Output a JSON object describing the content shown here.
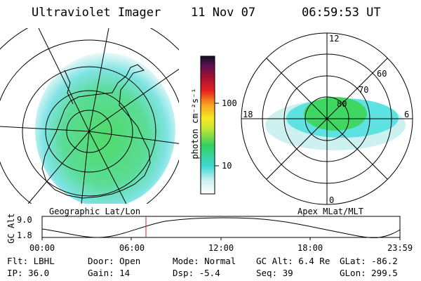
{
  "header": {
    "title": "Ultraviolet Imager",
    "date": "11 Nov 07",
    "time": "06:59:53 UT"
  },
  "colorbar": {
    "unit_label": "photon cm⁻²s⁻¹",
    "ticks": [
      "100",
      "10"
    ]
  },
  "left_panel": {
    "label": "Geographic Lat/Lon"
  },
  "right_panel": {
    "label": "Apex MLat/MLT",
    "mlt_labels": [
      "12",
      "18",
      "6",
      "0"
    ],
    "lat_labels": [
      "60",
      "70",
      "80"
    ]
  },
  "altitude_plot": {
    "ylabel": "GC Alt",
    "yticks": [
      "9.0",
      "1.8"
    ],
    "xticks": [
      "00:00",
      "06:00",
      "12:00",
      "18:00",
      "23:59"
    ],
    "marker_time": "06:59:53"
  },
  "info": {
    "flt": "Flt: LBHL",
    "ip": "IP: 36.0",
    "door": "Door: Open",
    "gain": "Gain: 14",
    "mode": "Mode: Normal",
    "dsp": "Dsp:   -5.4",
    "gc_alt": "GC Alt: 6.4 Re",
    "seq": "Seq: 39",
    "glat": "GLat: -86.2",
    "glon": "GLon: 299.5"
  },
  "colors": {
    "marker": "#d02020",
    "green": "#3cd65a",
    "cyan": "#56e0e0"
  }
}
